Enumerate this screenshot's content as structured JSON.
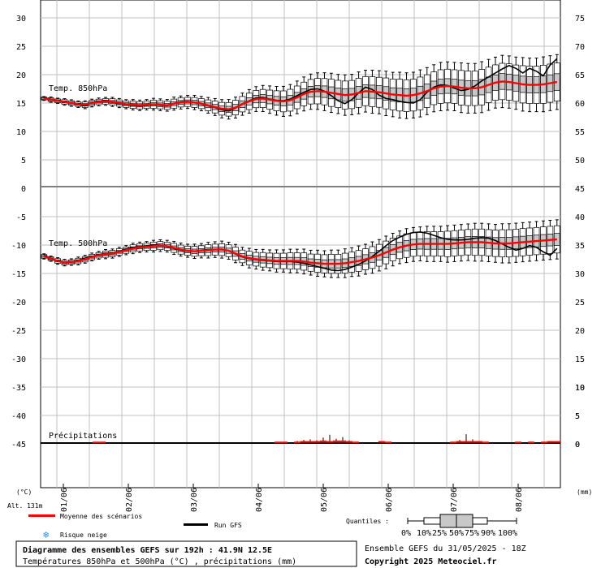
{
  "chart_data": [
    {
      "type": "box",
      "panel": "temp850",
      "label": "Temp. 850hPa",
      "y_ticks_left": [
        "30",
        "25",
        "20",
        "15",
        "10",
        "5"
      ],
      "y_ticks_right": [
        "75",
        "70",
        "65",
        "60",
        "55",
        "50"
      ],
      "ylim": [
        0,
        32.5
      ],
      "x_start": "31/05 18Z",
      "x_step_hours": 3,
      "mean": [
        15.8,
        15.6,
        15.4,
        15.2,
        15.0,
        14.8,
        14.7,
        15.0,
        15.2,
        15.3,
        15.2,
        15.0,
        14.8,
        14.7,
        14.6,
        14.7,
        14.8,
        14.7,
        14.6,
        14.9,
        15.1,
        15.2,
        15.1,
        14.9,
        14.6,
        14.3,
        14.0,
        13.9,
        14.2,
        14.8,
        15.3,
        15.7,
        15.8,
        15.6,
        15.4,
        15.3,
        15.5,
        16.0,
        16.6,
        17.0,
        17.1,
        17.0,
        16.8,
        16.6,
        16.4,
        16.5,
        16.8,
        17.1,
        17.0,
        16.9,
        16.7,
        16.5,
        16.4,
        16.3,
        16.4,
        16.7,
        17.1,
        17.6,
        17.9,
        18.0,
        17.9,
        17.7,
        17.6,
        17.6,
        17.8,
        18.2,
        18.6,
        18.8,
        18.7,
        18.5,
        18.3,
        18.2,
        18.2,
        18.3,
        18.5,
        18.7
      ],
      "run_gfs": [
        15.9,
        15.7,
        15.4,
        15.2,
        15.0,
        14.7,
        14.5,
        15.1,
        15.3,
        15.4,
        15.1,
        14.9,
        14.7,
        14.6,
        14.5,
        14.6,
        14.8,
        14.6,
        14.5,
        14.9,
        15.2,
        15.3,
        15.1,
        14.8,
        14.5,
        14.2,
        13.8,
        13.6,
        14.1,
        14.9,
        15.4,
        15.9,
        16.0,
        15.7,
        15.5,
        15.4,
        15.7,
        16.3,
        16.9,
        17.4,
        17.5,
        17.1,
        16.3,
        15.4,
        14.9,
        15.6,
        16.8,
        17.8,
        17.4,
        16.4,
        15.8,
        15.6,
        15.3,
        15.1,
        15.0,
        15.6,
        16.9,
        17.8,
        18.2,
        18.1,
        17.6,
        17.2,
        17.4,
        18.0,
        18.9,
        19.6,
        20.3,
        21.0,
        21.6,
        21.1,
        20.3,
        21.1,
        20.6,
        19.8,
        21.7,
        22.8
      ],
      "spread": [
        0.3,
        0.4,
        0.4,
        0.5,
        0.5,
        0.5,
        0.6,
        0.6,
        0.6,
        0.6,
        0.7,
        0.7,
        0.7,
        0.8,
        0.8,
        0.8,
        0.9,
        0.9,
        0.9,
        1.0,
        1.0,
        1.0,
        1.1,
        1.1,
        1.2,
        1.3,
        1.4,
        1.5,
        1.6,
        1.7,
        1.8,
        1.9,
        2.0,
        2.1,
        2.2,
        2.3,
        2.4,
        2.5,
        2.6,
        2.7,
        2.8,
        2.9,
        3.0,
        3.0,
        3.1,
        3.1,
        3.2,
        3.2,
        3.3,
        3.3,
        3.4,
        3.4,
        3.5,
        3.5,
        3.5,
        3.6,
        3.6,
        3.6,
        3.7,
        3.7,
        3.7,
        3.8,
        3.8,
        3.8,
        3.9,
        3.9,
        3.9,
        4.0,
        4.0,
        4.0,
        4.1,
        4.1,
        4.1,
        4.2,
        4.2,
        4.2
      ]
    },
    {
      "type": "box",
      "panel": "temp500",
      "label": "Temp. 500hPa",
      "y_ticks_left": [
        "0",
        "-5",
        "-10",
        "-15",
        "-20",
        "-25",
        "-30",
        "-35",
        "-40",
        "-45"
      ],
      "y_ticks_right": [
        "45",
        "40",
        "35",
        "30",
        "25",
        "20",
        "15",
        "10",
        "5",
        "0"
      ],
      "mean": [
        -12.0,
        -12.4,
        -12.8,
        -13.1,
        -13.0,
        -12.8,
        -12.5,
        -12.1,
        -11.8,
        -11.6,
        -11.5,
        -11.2,
        -10.9,
        -10.6,
        -10.4,
        -10.3,
        -10.2,
        -10.1,
        -10.2,
        -10.5,
        -10.8,
        -11.0,
        -11.1,
        -11.0,
        -10.9,
        -10.8,
        -10.8,
        -11.0,
        -11.5,
        -12.0,
        -12.3,
        -12.5,
        -12.6,
        -12.7,
        -12.8,
        -12.8,
        -12.8,
        -12.8,
        -12.9,
        -13.1,
        -13.2,
        -13.3,
        -13.3,
        -13.3,
        -13.2,
        -13.0,
        -12.8,
        -12.5,
        -12.2,
        -11.8,
        -11.3,
        -10.8,
        -10.4,
        -10.1,
        -9.9,
        -9.8,
        -9.8,
        -9.8,
        -9.8,
        -9.8,
        -9.7,
        -9.6,
        -9.5,
        -9.5,
        -9.5,
        -9.6,
        -9.7,
        -9.7,
        -9.7,
        -9.6,
        -9.5,
        -9.4,
        -9.3,
        -9.2,
        -9.1,
        -9.0
      ],
      "run_gfs": [
        -11.8,
        -12.3,
        -12.8,
        -13.1,
        -13.0,
        -12.7,
        -12.3,
        -12.0,
        -11.7,
        -11.5,
        -11.4,
        -11.1,
        -10.7,
        -10.4,
        -10.3,
        -10.2,
        -10.0,
        -10.0,
        -10.3,
        -10.6,
        -10.9,
        -11.1,
        -11.1,
        -10.9,
        -10.8,
        -10.8,
        -10.7,
        -11.0,
        -11.6,
        -12.1,
        -12.4,
        -12.6,
        -12.7,
        -12.8,
        -12.9,
        -12.9,
        -12.9,
        -13.0,
        -13.2,
        -13.5,
        -13.8,
        -14.1,
        -14.4,
        -14.5,
        -14.3,
        -13.9,
        -13.4,
        -12.8,
        -12.0,
        -11.1,
        -10.1,
        -9.2,
        -8.6,
        -8.1,
        -7.8,
        -7.7,
        -7.9,
        -8.3,
        -8.7,
        -9.0,
        -9.1,
        -9.1,
        -9.0,
        -8.8,
        -8.7,
        -8.8,
        -9.2,
        -9.8,
        -10.4,
        -10.9,
        -10.6,
        -10.1,
        -10.4,
        -11.2,
        -11.8,
        -10.6
      ],
      "spread": [
        0.4,
        0.4,
        0.5,
        0.5,
        0.5,
        0.6,
        0.6,
        0.6,
        0.6,
        0.7,
        0.7,
        0.7,
        0.7,
        0.8,
        0.8,
        0.8,
        0.9,
        0.9,
        0.9,
        1.0,
        1.0,
        1.0,
        1.1,
        1.1,
        1.2,
        1.2,
        1.3,
        1.3,
        1.4,
        1.4,
        1.5,
        1.5,
        1.6,
        1.6,
        1.7,
        1.7,
        1.8,
        1.8,
        1.9,
        1.9,
        2.0,
        2.0,
        2.1,
        2.1,
        2.2,
        2.2,
        2.3,
        2.3,
        2.4,
        2.4,
        2.5,
        2.5,
        2.5,
        2.6,
        2.6,
        2.6,
        2.7,
        2.7,
        2.7,
        2.8,
        2.8,
        2.8,
        2.8,
        2.9,
        2.9,
        2.9,
        2.9,
        3.0,
        3.0,
        3.0,
        3.0,
        3.0,
        3.0,
        3.0,
        3.0,
        3.0
      ]
    },
    {
      "type": "bar",
      "panel": "precip",
      "label": "Précipitations",
      "y_ticks_right": [
        "10",
        "5",
        "0"
      ],
      "unit": "(mm)",
      "mean": [
        0,
        0,
        0,
        0,
        0,
        0,
        0,
        0,
        0.1,
        0.1,
        0,
        0,
        0,
        0,
        0,
        0,
        0,
        0,
        0,
        0,
        0,
        0,
        0,
        0,
        0,
        0,
        0,
        0,
        0,
        0,
        0,
        0,
        0,
        0,
        0,
        0,
        0.1,
        0.1,
        0,
        0.1,
        0.2,
        0.2,
        0.2,
        0.3,
        0.2,
        0.3,
        0.3,
        0.2,
        0.1,
        0,
        0,
        0,
        0.2,
        0.1,
        0,
        0,
        0,
        0,
        0,
        0,
        0,
        0,
        0,
        0.1,
        0.2,
        0.2,
        0.2,
        0.2,
        0.1,
        0,
        0,
        0,
        0,
        0.1,
        0,
        0.1,
        0,
        0.1,
        0.2,
        0.2
      ],
      "whisker_max": [
        0,
        0,
        0,
        0,
        0,
        0,
        0,
        0,
        0.2,
        0.2,
        0,
        0,
        0,
        0,
        0,
        0,
        0,
        0,
        0,
        0,
        0,
        0,
        0,
        0,
        0,
        0,
        0,
        0,
        0,
        0,
        0,
        0,
        0,
        0,
        0,
        0,
        0.3,
        0.3,
        0,
        0.5,
        0.7,
        0.8,
        0.6,
        1.1,
        1.6,
        0.9,
        1.2,
        0.6,
        0.3,
        0,
        0,
        0,
        0.4,
        0.3,
        0,
        0,
        0,
        0,
        0,
        0,
        0,
        0,
        0,
        0.4,
        0.7,
        1.7,
        0.8,
        0.5,
        0.2,
        0,
        0,
        0,
        0,
        0.2,
        0,
        0.4,
        0,
        0.4,
        0.5,
        0.3
      ]
    }
  ],
  "left_axis": {
    "unit": "(°C)",
    "altitude": "Alt. 131m"
  },
  "right_axis": {
    "unit": "(mm)"
  },
  "x_ticks": [
    "01/06",
    "02/06",
    "03/06",
    "04/06",
    "05/06",
    "06/06",
    "07/06",
    "08/06"
  ],
  "legend": {
    "mean_label": "Moyenne des scénarios",
    "mean_color": "#ff0000",
    "run_label": "Run GFS",
    "run_color": "#000000",
    "snow_label": "Risque neige",
    "snow_icon": "snowflake-icon",
    "quantiles_label": "Quantiles :",
    "quantile_ticks": [
      "0%",
      "10%",
      "25%",
      "50%",
      "75%",
      "90%",
      "100%"
    ]
  },
  "footer": {
    "title": "Diagramme des ensembles GEFS sur 192h : 41.9N 12.5E",
    "subtitle": "Températures 850hPa et 500hPa (°C) , précipitations (mm)",
    "run_info": "Ensemble GEFS du 31/05/2025 - 18Z",
    "copyright": "Copyright 2025 Meteociel.fr"
  },
  "colors": {
    "grid": "#c0c0c0",
    "box_fill": "#c8c8c8",
    "mean": "#ff0000",
    "run": "#000000"
  }
}
